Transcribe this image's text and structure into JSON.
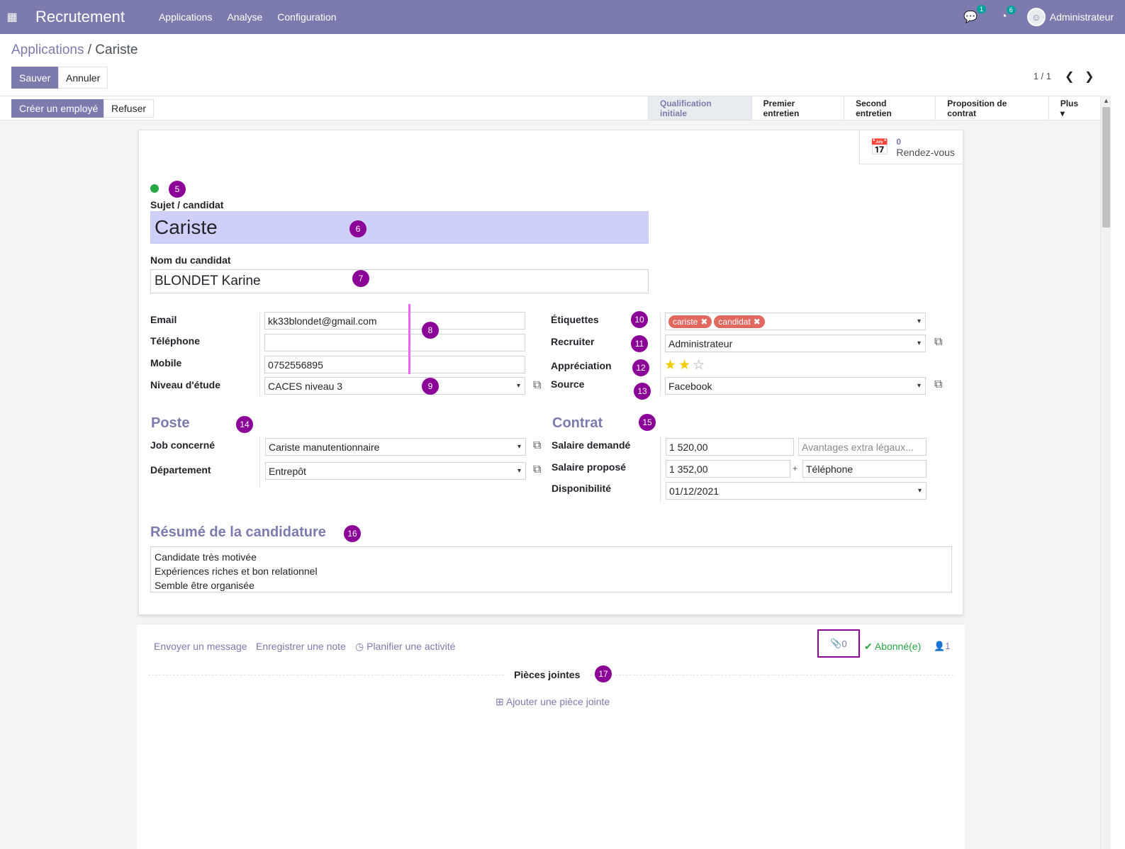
{
  "navbar": {
    "app_title": "Recrutement",
    "menu": [
      "Applications",
      "Analyse",
      "Configuration"
    ],
    "messages_badge": "1",
    "activities_badge": "6",
    "user_name": "Administrateur"
  },
  "control_panel": {
    "breadcrumb_parent": "Applications",
    "breadcrumb_sep": " / ",
    "breadcrumb_current": "Cariste",
    "save_label": "Sauver",
    "cancel_label": "Annuler",
    "pager": "1 / 1"
  },
  "statusbar": {
    "create_employee": "Créer un employé",
    "refuse": "Refuser",
    "stages": [
      "Qualification initiale",
      "Premier entretien",
      "Second entretien",
      "Proposition de contrat",
      "Plus ▾"
    ],
    "active_stage": "Qualification initiale"
  },
  "form": {
    "meetings_count": "0",
    "meetings_label": "Rendez-vous",
    "subject_label": "Sujet / candidat",
    "subject_value": "Cariste",
    "name_label": "Nom du candidat",
    "name_value": "BLONDET Karine",
    "email_label": "Email",
    "email_value": "kk33blondet@gmail.com",
    "phone_label": "Téléphone",
    "phone_value": "",
    "mobile_label": "Mobile",
    "mobile_value": "0752556895",
    "degree_label": "Niveau d'étude",
    "degree_value": "CACES niveau 3",
    "tags_label": "Étiquettes",
    "tags": [
      "cariste",
      "candidat"
    ],
    "recruiter_label": "Recruiter",
    "recruiter_value": "Administrateur",
    "appreciation_label": "Appréciation",
    "appreciation_stars": 2,
    "appreciation_max": 3,
    "source_label": "Source",
    "source_value": "Facebook",
    "poste_title": "Poste",
    "job_label": "Job concerné",
    "job_value": "Cariste manutentionnaire",
    "department_label": "Département",
    "department_value": "Entrepôt",
    "contrat_title": "Contrat",
    "salary_expected_label": "Salaire demandé",
    "salary_expected_value": "1 520,00",
    "salary_expected_extra_placeholder": "Avantages extra légaux...",
    "salary_proposed_label": "Salaire proposé",
    "salary_proposed_value": "1 352,00",
    "salary_plus": "+",
    "salary_proposed_extra": "Téléphone",
    "availability_label": "Disponibilité",
    "availability_value": "01/12/2021",
    "summary_title": "Résumé de la candidature",
    "summary_lines": [
      "Candidate très motivée",
      "Expériences riches et bon relationnel",
      "Semble être organisée"
    ]
  },
  "markers": [
    "5",
    "6",
    "7",
    "8",
    "9",
    "10",
    "11",
    "12",
    "13",
    "14",
    "15",
    "16",
    "17"
  ],
  "chatter": {
    "send_message": "Envoyer un message",
    "log_note": "Enregistrer une note",
    "schedule_activity": "Planifier une activité",
    "attachments_count": "0",
    "follow_label": "Abonné(e)",
    "followers_count": "1",
    "attachments_title": "Pièces jointes",
    "add_attachment": "Ajouter une pièce jointe"
  },
  "colors": {
    "brand": "#7c7bad",
    "marker": "#8b0097",
    "title_highlight": "#cfd0f9",
    "tag": "#e0685f",
    "kanban_state": "#28a745"
  }
}
